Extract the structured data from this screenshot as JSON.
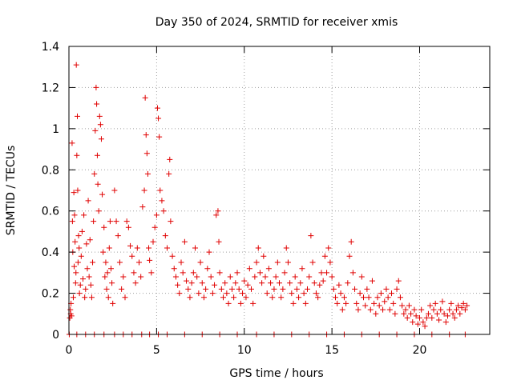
{
  "chart_data": {
    "type": "scatter",
    "title": "Day 350 of 2024, SRMTID for receiver xmis",
    "xlabel": "GPS time / hours",
    "ylabel": "SRMTID / TECUs",
    "xlim": [
      0,
      24
    ],
    "ylim": [
      0,
      1.4
    ],
    "x_ticks": [
      0,
      5,
      10,
      15,
      20
    ],
    "x_tick_labels": [
      "0",
      "5",
      "10",
      "15",
      "20"
    ],
    "y_ticks": [
      0,
      0.2,
      0.4,
      0.6,
      0.8,
      1.0,
      1.2,
      1.4
    ],
    "y_tick_labels": [
      "0",
      "0.2",
      "0.4",
      "0.6",
      "0.8",
      "1",
      "1.2",
      "1.4"
    ],
    "grid": true,
    "marker": "+",
    "color": "#e00000",
    "series": [
      {
        "name": "SRMTID",
        "points": [
          [
            0.05,
            0.08
          ],
          [
            0.08,
            0.12
          ],
          [
            0.1,
            0.1
          ],
          [
            0.12,
            0.15
          ],
          [
            0.15,
            0.09
          ],
          [
            0.18,
            0.93
          ],
          [
            0.2,
            0.55
          ],
          [
            0.22,
            0.4
          ],
          [
            0.25,
            0.18
          ],
          [
            0.28,
            0.69
          ],
          [
            0.3,
            0.33
          ],
          [
            0.32,
            0.58
          ],
          [
            0.35,
            0.45
          ],
          [
            0.38,
            0.25
          ],
          [
            0.4,
            0.3
          ],
          [
            0.42,
            1.31
          ],
          [
            0.45,
            0.87
          ],
          [
            0.48,
            1.06
          ],
          [
            0.5,
            0.7
          ],
          [
            0.52,
            0.35
          ],
          [
            0.55,
            0.48
          ],
          [
            0.58,
            0.42
          ],
          [
            0.6,
            0.2
          ],
          [
            0.65,
            0.24
          ],
          [
            0.7,
            0.38
          ],
          [
            0.75,
            0.5
          ],
          [
            0.8,
            0.27
          ],
          [
            0.85,
            0.58
          ],
          [
            0.9,
            0.18
          ],
          [
            0.95,
            0.22
          ],
          [
            1.0,
            0.44
          ],
          [
            1.05,
            0.32
          ],
          [
            1.1,
            0.65
          ],
          [
            1.15,
            0.28
          ],
          [
            1.2,
            0.46
          ],
          [
            1.25,
            0.24
          ],
          [
            1.3,
            0.18
          ],
          [
            1.35,
            0.35
          ],
          [
            1.4,
            0.55
          ],
          [
            1.45,
            0.78
          ],
          [
            1.5,
            0.99
          ],
          [
            1.55,
            1.2
          ],
          [
            1.58,
            1.12
          ],
          [
            1.62,
            0.87
          ],
          [
            1.65,
            0.73
          ],
          [
            1.7,
            0.6
          ],
          [
            1.75,
            1.06
          ],
          [
            1.8,
            1.02
          ],
          [
            1.85,
            0.95
          ],
          [
            1.9,
            0.68
          ],
          [
            1.95,
            0.4
          ],
          [
            2.0,
            0.52
          ],
          [
            2.05,
            0.28
          ],
          [
            2.1,
            0.35
          ],
          [
            2.15,
            0.22
          ],
          [
            2.2,
            0.3
          ],
          [
            2.25,
            0.18
          ],
          [
            2.3,
            0.42
          ],
          [
            2.35,
            0.55
          ],
          [
            2.4,
            0.32
          ],
          [
            2.45,
            0.25
          ],
          [
            2.5,
            0.15
          ],
          [
            2.6,
            0.7
          ],
          [
            2.7,
            0.55
          ],
          [
            2.8,
            0.48
          ],
          [
            2.9,
            0.35
          ],
          [
            3.0,
            0.22
          ],
          [
            3.1,
            0.28
          ],
          [
            3.2,
            0.18
          ],
          [
            3.3,
            0.55
          ],
          [
            3.4,
            0.52
          ],
          [
            3.5,
            0.43
          ],
          [
            3.6,
            0.38
          ],
          [
            3.7,
            0.3
          ],
          [
            3.8,
            0.25
          ],
          [
            3.9,
            0.42
          ],
          [
            4.0,
            0.35
          ],
          [
            4.1,
            0.28
          ],
          [
            4.2,
            0.62
          ],
          [
            4.3,
            0.7
          ],
          [
            4.35,
            1.15
          ],
          [
            4.4,
            0.97
          ],
          [
            4.45,
            0.88
          ],
          [
            4.5,
            0.78
          ],
          [
            4.55,
            0.42
          ],
          [
            4.6,
            0.36
          ],
          [
            4.7,
            0.3
          ],
          [
            4.8,
            0.45
          ],
          [
            4.9,
            0.52
          ],
          [
            5.0,
            0.58
          ],
          [
            5.05,
            1.1
          ],
          [
            5.1,
            1.05
          ],
          [
            5.15,
            0.96
          ],
          [
            5.2,
            0.7
          ],
          [
            5.3,
            0.65
          ],
          [
            5.4,
            0.6
          ],
          [
            5.5,
            0.48
          ],
          [
            5.6,
            0.42
          ],
          [
            5.7,
            0.78
          ],
          [
            5.75,
            0.85
          ],
          [
            5.8,
            0.55
          ],
          [
            5.9,
            0.38
          ],
          [
            6.0,
            0.32
          ],
          [
            6.1,
            0.28
          ],
          [
            6.2,
            0.24
          ],
          [
            6.3,
            0.2
          ],
          [
            6.4,
            0.35
          ],
          [
            6.5,
            0.3
          ],
          [
            6.6,
            0.45
          ],
          [
            6.7,
            0.26
          ],
          [
            6.8,
            0.22
          ],
          [
            6.9,
            0.18
          ],
          [
            7.0,
            0.25
          ],
          [
            7.1,
            0.3
          ],
          [
            7.2,
            0.42
          ],
          [
            7.3,
            0.28
          ],
          [
            7.4,
            0.2
          ],
          [
            7.5,
            0.35
          ],
          [
            7.6,
            0.25
          ],
          [
            7.7,
            0.18
          ],
          [
            7.8,
            0.22
          ],
          [
            7.9,
            0.32
          ],
          [
            8.0,
            0.4
          ],
          [
            8.1,
            0.28
          ],
          [
            8.2,
            0.2
          ],
          [
            8.3,
            0.24
          ],
          [
            8.4,
            0.58
          ],
          [
            8.5,
            0.6
          ],
          [
            8.55,
            0.45
          ],
          [
            8.6,
            0.3
          ],
          [
            8.7,
            0.22
          ],
          [
            8.8,
            0.18
          ],
          [
            8.9,
            0.25
          ],
          [
            9.0,
            0.2
          ],
          [
            9.1,
            0.15
          ],
          [
            9.2,
            0.28
          ],
          [
            9.3,
            0.22
          ],
          [
            9.4,
            0.18
          ],
          [
            9.5,
            0.25
          ],
          [
            9.6,
            0.3
          ],
          [
            9.7,
            0.22
          ],
          [
            9.8,
            0.15
          ],
          [
            9.9,
            0.2
          ],
          [
            10.0,
            0.26
          ],
          [
            10.1,
            0.18
          ],
          [
            10.2,
            0.24
          ],
          [
            10.3,
            0.32
          ],
          [
            10.4,
            0.22
          ],
          [
            10.5,
            0.15
          ],
          [
            10.6,
            0.28
          ],
          [
            10.7,
            0.35
          ],
          [
            10.8,
            0.42
          ],
          [
            10.9,
            0.3
          ],
          [
            11.0,
            0.25
          ],
          [
            11.1,
            0.38
          ],
          [
            11.2,
            0.28
          ],
          [
            11.3,
            0.2
          ],
          [
            11.4,
            0.32
          ],
          [
            11.5,
            0.25
          ],
          [
            11.6,
            0.18
          ],
          [
            11.7,
            0.22
          ],
          [
            11.8,
            0.28
          ],
          [
            11.9,
            0.35
          ],
          [
            12.0,
            0.25
          ],
          [
            12.1,
            0.18
          ],
          [
            12.2,
            0.22
          ],
          [
            12.3,
            0.3
          ],
          [
            12.4,
            0.42
          ],
          [
            12.5,
            0.35
          ],
          [
            12.6,
            0.25
          ],
          [
            12.7,
            0.2
          ],
          [
            12.8,
            0.15
          ],
          [
            12.9,
            0.28
          ],
          [
            13.0,
            0.22
          ],
          [
            13.1,
            0.18
          ],
          [
            13.2,
            0.25
          ],
          [
            13.3,
            0.32
          ],
          [
            13.4,
            0.2
          ],
          [
            13.5,
            0.15
          ],
          [
            13.6,
            0.22
          ],
          [
            13.7,
            0.28
          ],
          [
            13.8,
            0.48
          ],
          [
            13.9,
            0.35
          ],
          [
            14.0,
            0.25
          ],
          [
            14.1,
            0.2
          ],
          [
            14.2,
            0.18
          ],
          [
            14.3,
            0.24
          ],
          [
            14.4,
            0.3
          ],
          [
            14.5,
            0.26
          ],
          [
            14.6,
            0.38
          ],
          [
            14.7,
            0.3
          ],
          [
            14.8,
            0.42
          ],
          [
            14.9,
            0.35
          ],
          [
            15.0,
            0.28
          ],
          [
            15.1,
            0.22
          ],
          [
            15.2,
            0.18
          ],
          [
            15.3,
            0.15
          ],
          [
            15.4,
            0.24
          ],
          [
            15.5,
            0.2
          ],
          [
            15.6,
            0.12
          ],
          [
            15.7,
            0.18
          ],
          [
            15.8,
            0.15
          ],
          [
            15.9,
            0.25
          ],
          [
            16.0,
            0.38
          ],
          [
            16.1,
            0.45
          ],
          [
            16.2,
            0.3
          ],
          [
            16.3,
            0.22
          ],
          [
            16.4,
            0.15
          ],
          [
            16.5,
            0.12
          ],
          [
            16.6,
            0.2
          ],
          [
            16.7,
            0.28
          ],
          [
            16.8,
            0.18
          ],
          [
            16.9,
            0.14
          ],
          [
            17.0,
            0.22
          ],
          [
            17.1,
            0.18
          ],
          [
            17.2,
            0.12
          ],
          [
            17.3,
            0.26
          ],
          [
            17.4,
            0.15
          ],
          [
            17.5,
            0.1
          ],
          [
            17.6,
            0.18
          ],
          [
            17.7,
            0.14
          ],
          [
            17.8,
            0.2
          ],
          [
            17.9,
            0.12
          ],
          [
            18.0,
            0.16
          ],
          [
            18.1,
            0.22
          ],
          [
            18.2,
            0.18
          ],
          [
            18.3,
            0.12
          ],
          [
            18.4,
            0.2
          ],
          [
            18.5,
            0.15
          ],
          [
            18.6,
            0.1
          ],
          [
            18.7,
            0.22
          ],
          [
            18.8,
            0.26
          ],
          [
            18.9,
            0.18
          ],
          [
            19.0,
            0.14
          ],
          [
            19.1,
            0.1
          ],
          [
            19.2,
            0.12
          ],
          [
            19.3,
            0.08
          ],
          [
            19.4,
            0.14
          ],
          [
            19.5,
            0.1
          ],
          [
            19.6,
            0.06
          ],
          [
            19.7,
            0.12
          ],
          [
            19.8,
            0.09
          ],
          [
            19.9,
            0.05
          ],
          [
            20.0,
            0.08
          ],
          [
            20.1,
            0.12
          ],
          [
            20.2,
            0.06
          ],
          [
            20.3,
            0.04
          ],
          [
            20.4,
            0.08
          ],
          [
            20.5,
            0.1
          ],
          [
            20.6,
            0.14
          ],
          [
            20.7,
            0.08
          ],
          [
            20.8,
            0.12
          ],
          [
            20.9,
            0.15
          ],
          [
            21.0,
            0.1
          ],
          [
            21.1,
            0.07
          ],
          [
            21.2,
            0.12
          ],
          [
            21.3,
            0.16
          ],
          [
            21.4,
            0.1
          ],
          [
            21.5,
            0.06
          ],
          [
            21.6,
            0.09
          ],
          [
            21.7,
            0.12
          ],
          [
            21.8,
            0.15
          ],
          [
            21.9,
            0.1
          ],
          [
            22.0,
            0.08
          ],
          [
            22.1,
            0.12
          ],
          [
            22.2,
            0.14
          ],
          [
            22.3,
            0.1
          ],
          [
            22.4,
            0.13
          ],
          [
            22.5,
            0.15
          ],
          [
            22.6,
            0.12
          ],
          [
            22.7,
            0.14
          ],
          [
            0.02,
            0.0
          ],
          [
            0.45,
            0.0
          ],
          [
            0.95,
            0.0
          ],
          [
            1.45,
            0.0
          ],
          [
            2.0,
            0.0
          ],
          [
            2.6,
            0.0
          ],
          [
            3.1,
            0.0
          ],
          [
            3.6,
            0.0
          ],
          [
            4.15,
            0.0
          ],
          [
            4.6,
            0.0
          ],
          [
            5.1,
            0.0
          ],
          [
            5.6,
            0.0
          ],
          [
            6.6,
            0.0
          ],
          [
            7.6,
            0.0
          ],
          [
            8.6,
            0.0
          ],
          [
            9.6,
            0.0
          ],
          [
            10.7,
            0.0
          ],
          [
            11.7,
            0.0
          ],
          [
            12.7,
            0.0
          ],
          [
            13.7,
            0.0
          ],
          [
            14.7,
            0.0
          ],
          [
            15.7,
            0.0
          ],
          [
            16.7,
            0.0
          ],
          [
            17.7,
            0.0
          ],
          [
            18.7,
            0.0
          ],
          [
            19.7,
            0.0
          ],
          [
            20.7,
            0.0
          ],
          [
            21.7,
            0.0
          ],
          [
            22.6,
            0.0
          ]
        ]
      }
    ]
  }
}
